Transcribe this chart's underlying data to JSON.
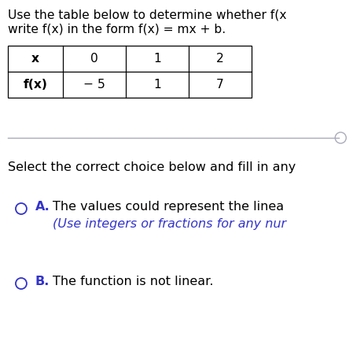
{
  "title_line1": "Use the table below to determine whether f(x",
  "title_line2": "write f(x) in the form f(x) = mx + b.",
  "table_headers": [
    "x",
    "0",
    "1",
    "2"
  ],
  "table_row_label": "f(x)",
  "table_row_values": [
    "− 5",
    "1",
    "7"
  ],
  "prompt_text": "Select the correct choice below and fill in any",
  "choice_A_label": "A.",
  "choice_A_text1": "The values could represent the linea",
  "choice_A_text2": "(Use integers or fractions for any nur",
  "choice_B_label": "B.",
  "choice_B_text": "The function is not linear.",
  "bg_color": "#ffffff",
  "text_color": "#000000",
  "blue_color": "#3333cc",
  "table_border_color": "#000000",
  "divider_color": "#aaaabb",
  "title_fontsize": 11.2,
  "table_fontsize": 11.2,
  "prompt_fontsize": 11.5,
  "choice_fontsize": 11.5
}
